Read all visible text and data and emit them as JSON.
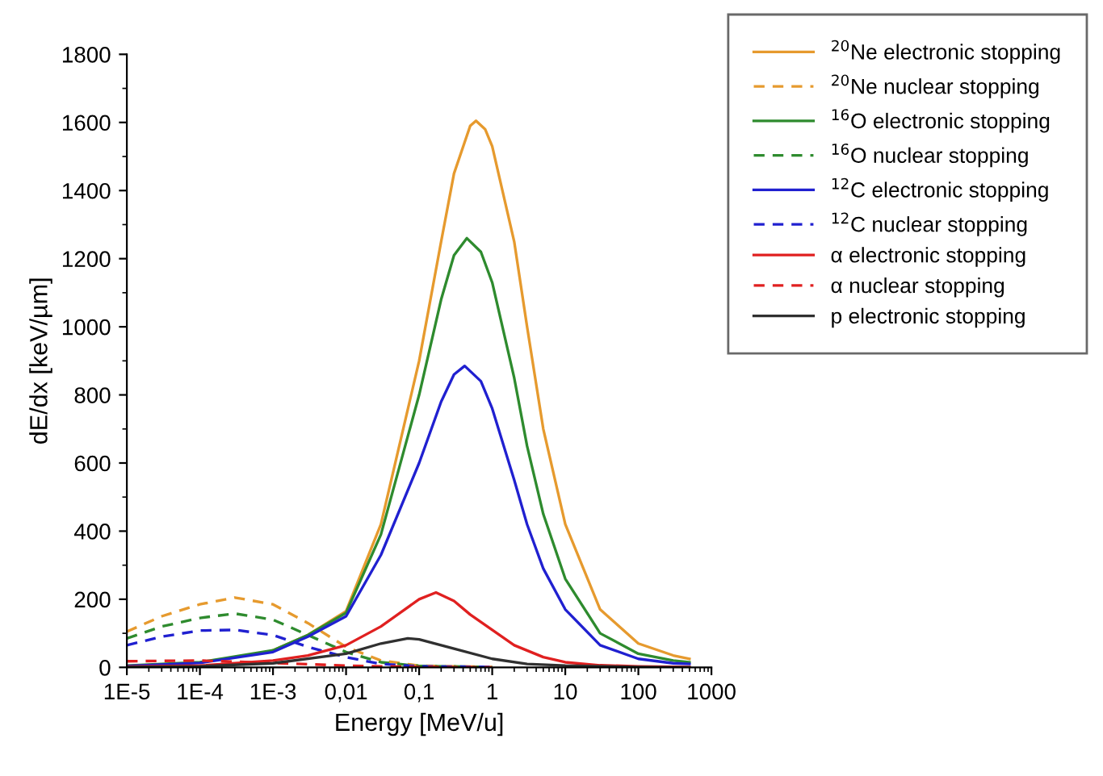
{
  "chart_data": {
    "type": "line",
    "xlabel": "Energy [MeV/u]",
    "ylabel": "dE/dx [keV/µm]",
    "log": "x",
    "xlim": [
      1e-05,
      1000
    ],
    "xticks": [
      {
        "value": 1e-05,
        "label": "1E-5"
      },
      {
        "value": 0.0001,
        "label": "1E-4"
      },
      {
        "value": 0.001,
        "label": "1E-3"
      },
      {
        "value": 0.01,
        "label": "0,01"
      },
      {
        "value": 0.1,
        "label": "0,1"
      },
      1,
      10,
      100,
      1000
    ],
    "ylim": [
      0,
      1800
    ],
    "yticks": [
      0,
      200,
      400,
      600,
      800,
      1000,
      1200,
      1400,
      1600,
      1800
    ],
    "grid": false,
    "legend": "top right",
    "marker": "none",
    "series": [
      {
        "name": "$^{20}$Ne electronic stopping",
        "color": "#e69a2e",
        "line_style": "solid",
        "x": [
          0.001,
          0.003,
          0.01,
          0.03,
          0.1,
          0.2,
          0.3,
          0.5,
          0.6,
          0.8,
          1,
          2,
          3,
          5,
          10,
          30,
          100,
          300,
          500
        ],
        "values": [
          50,
          95,
          165,
          420,
          900,
          1250,
          1450,
          1590,
          1605,
          1580,
          1530,
          1250,
          1000,
          700,
          420,
          170,
          70,
          35,
          25
        ]
      },
      {
        "name": "$^{20}$Ne nuclear stopping",
        "color": "#e69a2e",
        "line_style": "dashed",
        "x": [
          1e-05,
          3e-05,
          0.0001,
          0.0003,
          0.001,
          0.003,
          0.01,
          0.03,
          0.1,
          1
        ],
        "values": [
          105,
          150,
          185,
          205,
          185,
          130,
          60,
          20,
          5,
          1
        ]
      },
      {
        "name": "$^{16}$O electronic stopping",
        "color": "#2e8b2e",
        "line_style": "solid",
        "x": [
          1e-05,
          0.0001,
          0.001,
          0.003,
          0.01,
          0.03,
          0.1,
          0.2,
          0.3,
          0.45,
          0.7,
          1,
          2,
          3,
          5,
          10,
          30,
          100,
          300,
          500
        ],
        "values": [
          5,
          15,
          50,
          95,
          160,
          390,
          800,
          1080,
          1210,
          1260,
          1220,
          1130,
          850,
          650,
          450,
          260,
          100,
          40,
          20,
          15
        ]
      },
      {
        "name": "$^{16}$O nuclear stopping",
        "color": "#2e8b2e",
        "line_style": "dashed",
        "x": [
          1e-05,
          3e-05,
          0.0001,
          0.0003,
          0.001,
          0.003,
          0.01,
          0.03,
          0.1,
          1
        ],
        "values": [
          85,
          120,
          145,
          158,
          140,
          95,
          45,
          15,
          4,
          1
        ]
      },
      {
        "name": "$^{12}$C electronic stopping",
        "color": "#2020d0",
        "line_style": "solid",
        "x": [
          1e-05,
          0.0001,
          0.001,
          0.003,
          0.01,
          0.03,
          0.1,
          0.2,
          0.3,
          0.42,
          0.7,
          1,
          2,
          3,
          5,
          10,
          30,
          100,
          300,
          500
        ],
        "values": [
          4,
          13,
          45,
          90,
          150,
          330,
          600,
          780,
          860,
          885,
          840,
          760,
          550,
          420,
          290,
          170,
          65,
          25,
          12,
          10
        ]
      },
      {
        "name": "$^{12}$C nuclear stopping",
        "color": "#2020d0",
        "line_style": "dashed",
        "x": [
          1e-05,
          3e-05,
          0.0001,
          0.0003,
          0.001,
          0.003,
          0.01,
          0.03,
          0.1,
          1
        ],
        "values": [
          65,
          90,
          108,
          110,
          95,
          60,
          30,
          10,
          3,
          1
        ]
      },
      {
        "name": "α electronic stopping",
        "color": "#e02020",
        "line_style": "solid",
        "x": [
          1e-05,
          0.0001,
          0.001,
          0.003,
          0.01,
          0.03,
          0.1,
          0.17,
          0.3,
          0.5,
          1,
          2,
          5,
          10,
          30,
          100,
          500
        ],
        "values": [
          2,
          5,
          20,
          35,
          65,
          120,
          200,
          220,
          195,
          155,
          110,
          65,
          30,
          15,
          6,
          3,
          1
        ]
      },
      {
        "name": "α nuclear stopping",
        "color": "#e02020",
        "line_style": "dashed",
        "x": [
          1e-05,
          0.0001,
          0.001,
          0.01,
          0.1,
          1
        ],
        "values": [
          18,
          20,
          13,
          5,
          1,
          0
        ]
      },
      {
        "name": "p electronic stopping",
        "color": "#303030",
        "line_style": "solid",
        "x": [
          1e-05,
          0.0001,
          0.001,
          0.01,
          0.03,
          0.07,
          0.1,
          0.3,
          1,
          3,
          10,
          100,
          500
        ],
        "values": [
          1,
          3,
          12,
          40,
          70,
          85,
          82,
          55,
          25,
          10,
          5,
          1,
          0
        ]
      }
    ]
  }
}
